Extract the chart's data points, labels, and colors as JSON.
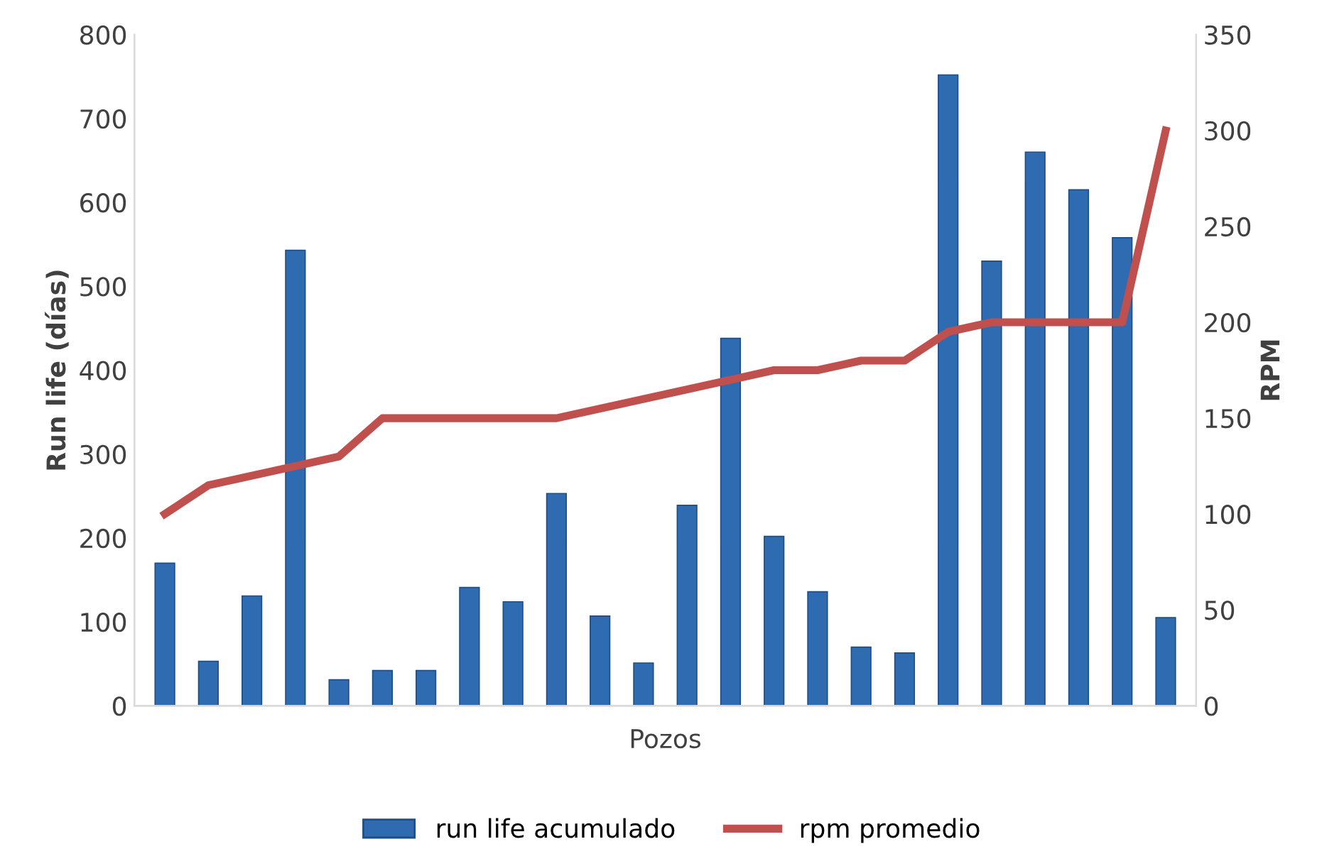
{
  "chart_data": {
    "type": "bar",
    "xlabel": "Pozos",
    "ylabel": "Run life (días)",
    "y2label": "RPM",
    "categories": [
      null,
      null,
      null,
      null,
      null,
      null,
      null,
      null,
      null,
      null,
      null,
      null,
      null,
      null,
      null,
      null,
      null,
      null,
      null,
      null,
      null,
      null,
      null,
      null
    ],
    "series": [
      {
        "name": "run life acumulado",
        "color": "#2f6bb0",
        "values": [
          170,
          53,
          131,
          543,
          31,
          42,
          42,
          141,
          124,
          253,
          107,
          51,
          239,
          438,
          202,
          136,
          70,
          63,
          752,
          530,
          660,
          615,
          558,
          105
        ]
      },
      {
        "name": "rpm promedio",
        "type": "line",
        "axis": "y2",
        "color": "#c0504d",
        "values": [
          100,
          115,
          120,
          125,
          130,
          150,
          150,
          150,
          150,
          150,
          155,
          160,
          165,
          170,
          175,
          175,
          180,
          180,
          195,
          200,
          200,
          200,
          200,
          300
        ]
      }
    ],
    "ylim": [
      0,
      800
    ],
    "yticks": [
      0,
      100,
      200,
      300,
      400,
      500,
      600,
      700,
      800
    ],
    "y2lim": [
      0,
      350
    ],
    "y2ticks": [
      0,
      50,
      100,
      150,
      200,
      250,
      300,
      350
    ],
    "grid": false,
    "legend": "bottom",
    "line_style": "solid",
    "marker": "none"
  }
}
